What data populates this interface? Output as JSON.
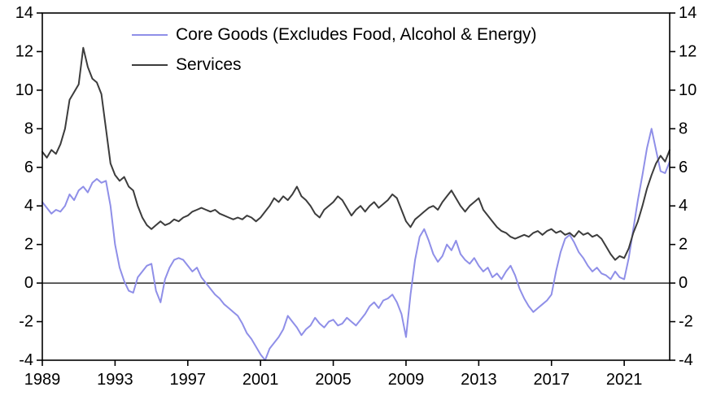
{
  "chart_data": {
    "type": "line",
    "title": "",
    "xlabel": "",
    "ylabel": "",
    "xlim": [
      1989,
      2023.5
    ],
    "ylim": [
      -4,
      14
    ],
    "x_ticks": [
      1989,
      1993,
      1997,
      2001,
      2005,
      2009,
      2013,
      2017,
      2021
    ],
    "y_ticks": [
      -4,
      -2,
      0,
      2,
      4,
      6,
      8,
      10,
      12,
      14
    ],
    "y_axis_sides": "both",
    "grid": false,
    "zero_line": true,
    "legend_position": "top-left-inside",
    "x_start": 1989.0,
    "x_step": 0.25,
    "series": [
      {
        "name": "Core Goods (Excludes Food, Alcohol & Energy)",
        "color": "#8F8FE8",
        "values": [
          4.2,
          3.9,
          3.6,
          3.8,
          3.7,
          4.0,
          4.6,
          4.3,
          4.8,
          5.0,
          4.7,
          5.2,
          5.4,
          5.2,
          5.3,
          4.0,
          2.0,
          0.8,
          0.1,
          -0.4,
          -0.5,
          0.3,
          0.6,
          0.9,
          1.0,
          -0.4,
          -1.0,
          0.2,
          0.8,
          1.2,
          1.3,
          1.2,
          0.9,
          0.6,
          0.8,
          0.3,
          0.0,
          -0.3,
          -0.6,
          -0.8,
          -1.1,
          -1.3,
          -1.5,
          -1.7,
          -2.1,
          -2.6,
          -2.9,
          -3.3,
          -3.7,
          -4.0,
          -3.4,
          -3.1,
          -2.8,
          -2.4,
          -1.7,
          -2.0,
          -2.3,
          -2.7,
          -2.4,
          -2.2,
          -1.8,
          -2.1,
          -2.3,
          -2.0,
          -1.9,
          -2.2,
          -2.1,
          -1.8,
          -2.0,
          -2.2,
          -1.9,
          -1.6,
          -1.2,
          -1.0,
          -1.3,
          -0.9,
          -0.8,
          -0.6,
          -1.0,
          -1.6,
          -2.8,
          -0.6,
          1.2,
          2.4,
          2.8,
          2.2,
          1.5,
          1.1,
          1.4,
          2.0,
          1.7,
          2.2,
          1.5,
          1.2,
          1.0,
          1.3,
          0.9,
          0.6,
          0.8,
          0.3,
          0.5,
          0.2,
          0.6,
          0.9,
          0.4,
          -0.3,
          -0.8,
          -1.2,
          -1.5,
          -1.3,
          -1.1,
          -0.9,
          -0.6,
          0.6,
          1.6,
          2.3,
          2.5,
          2.1,
          1.6,
          1.3,
          0.9,
          0.6,
          0.8,
          0.5,
          0.4,
          0.2,
          0.6,
          0.3,
          0.2,
          1.3,
          2.8,
          4.3,
          5.6,
          7.0,
          8.0,
          6.9,
          5.8,
          5.7,
          6.3
        ]
      },
      {
        "name": "Services",
        "color": "#3C3C3C",
        "values": [
          6.8,
          6.5,
          6.9,
          6.7,
          7.2,
          8.0,
          9.5,
          9.9,
          10.3,
          12.2,
          11.2,
          10.6,
          10.4,
          9.8,
          8.0,
          6.2,
          5.6,
          5.3,
          5.5,
          5.0,
          4.8,
          4.0,
          3.4,
          3.0,
          2.8,
          3.0,
          3.2,
          3.0,
          3.1,
          3.3,
          3.2,
          3.4,
          3.5,
          3.7,
          3.8,
          3.9,
          3.8,
          3.7,
          3.8,
          3.6,
          3.5,
          3.4,
          3.3,
          3.4,
          3.3,
          3.5,
          3.4,
          3.2,
          3.4,
          3.7,
          4.0,
          4.4,
          4.2,
          4.5,
          4.3,
          4.6,
          5.0,
          4.5,
          4.3,
          4.0,
          3.6,
          3.4,
          3.8,
          4.0,
          4.2,
          4.5,
          4.3,
          3.9,
          3.5,
          3.8,
          4.0,
          3.7,
          4.0,
          4.2,
          3.9,
          4.1,
          4.3,
          4.6,
          4.4,
          3.8,
          3.2,
          2.9,
          3.3,
          3.5,
          3.7,
          3.9,
          4.0,
          3.8,
          4.2,
          4.5,
          4.8,
          4.4,
          4.0,
          3.7,
          4.0,
          4.2,
          4.4,
          3.8,
          3.5,
          3.2,
          2.9,
          2.7,
          2.6,
          2.4,
          2.3,
          2.4,
          2.5,
          2.4,
          2.6,
          2.7,
          2.5,
          2.7,
          2.8,
          2.6,
          2.7,
          2.5,
          2.6,
          2.4,
          2.7,
          2.5,
          2.6,
          2.4,
          2.5,
          2.3,
          1.9,
          1.5,
          1.2,
          1.4,
          1.3,
          1.8,
          2.6,
          3.2,
          4.0,
          4.9,
          5.6,
          6.2,
          6.6,
          6.3,
          6.9
        ]
      }
    ]
  },
  "colors": {
    "background": "#FFFFFF",
    "axis": "#000000"
  }
}
